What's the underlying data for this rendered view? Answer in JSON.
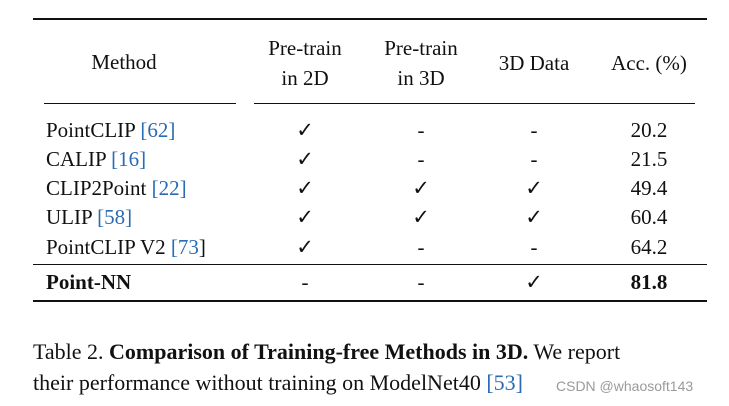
{
  "table": {
    "headers": {
      "method": "Method",
      "pretrain2d": [
        "Pre-train",
        "in 2D"
      ],
      "pretrain3d": [
        "Pre-train",
        "in 3D"
      ],
      "data3d": "3D Data",
      "acc": "Acc. (%)"
    },
    "rows": [
      {
        "name": "PointCLIP ",
        "ref": "[62]",
        "ref_close": "",
        "p2d": "✓",
        "p3d": "-",
        "d3d": "-",
        "acc": "20.2",
        "bold": false
      },
      {
        "name": "CALIP ",
        "ref": "[16]",
        "ref_close": "",
        "p2d": "✓",
        "p3d": "-",
        "d3d": "-",
        "acc": "21.5",
        "bold": false
      },
      {
        "name": "CLIP2Point ",
        "ref": "[22]",
        "ref_close": "",
        "p2d": "✓",
        "p3d": "✓",
        "d3d": "✓",
        "acc": "49.4",
        "bold": false
      },
      {
        "name": "ULIP ",
        "ref": "[58]",
        "ref_close": "",
        "p2d": "✓",
        "p3d": "✓",
        "d3d": "✓",
        "acc": "60.4",
        "bold": false
      },
      {
        "name": "PointCLIP V2 ",
        "ref": "[73",
        "ref_close": "]",
        "p2d": "✓",
        "p3d": "-",
        "d3d": "-",
        "acc": "64.2",
        "bold": false
      },
      {
        "name": "Point-NN",
        "ref": "",
        "ref_close": "",
        "p2d": "-",
        "p3d": "-",
        "d3d": "✓",
        "acc": "81.8",
        "bold": true
      }
    ]
  },
  "caption": {
    "prefix": "Table 2. ",
    "bold": "Comparison of Training-free Methods in 3D.",
    "text1": " We report",
    "text2": "their performance without training on ModelNet40 ",
    "ref": "[53]"
  },
  "watermark": "CSDN @whaosoft143"
}
